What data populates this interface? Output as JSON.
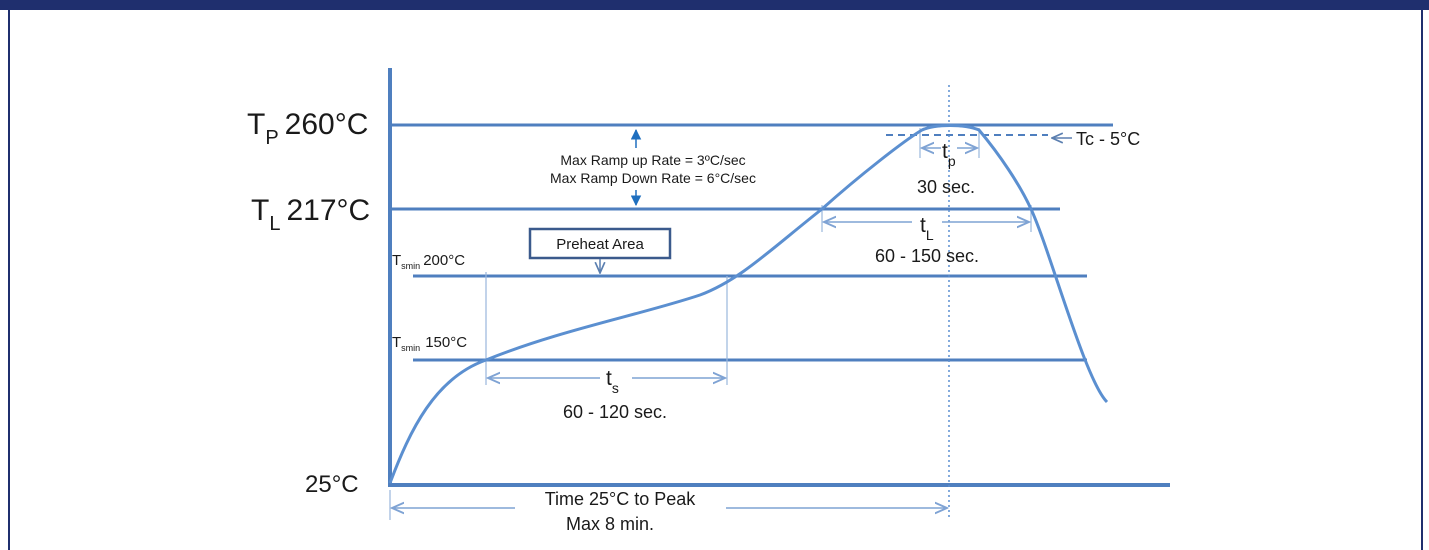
{
  "colors": {
    "header_bar": "#1f2f6e",
    "line": "#4f7fbf",
    "curve": "#5b8fd0",
    "dim": "#7fa3d4",
    "ramp_arrow": "#1f6fbf",
    "box_border": "#3b5a8c"
  },
  "levels": {
    "tp": {
      "symbol": "T",
      "sub": "P",
      "value": "260°C"
    },
    "tl": {
      "symbol": "T",
      "sub": "L",
      "value": "217°C"
    },
    "tsmax": {
      "symbol": "T",
      "sub": "smin",
      "value": "200°C"
    },
    "tsmin": {
      "symbol": "T",
      "sub": "smin",
      "value": "150°C"
    },
    "ambient": {
      "value": "25°C"
    }
  },
  "annotations": {
    "ramp_up": "Max Ramp up Rate = 3ºC/sec",
    "ramp_down": "Max Ramp Down Rate = 6°C/sec",
    "preheat": "Preheat Area",
    "tc": "Tc - 5°C",
    "tp_symbol": "t",
    "tp_sub": "p",
    "tp_time": "30 sec.",
    "tl_symbol": "t",
    "tl_sub": "L",
    "tl_time": "60 - 150 sec.",
    "ts_symbol": "t",
    "ts_sub": "s",
    "ts_time": "60 - 120 sec.",
    "peak_time_line1": "Time 25°C to Peak",
    "peak_time_line2": "Max 8 min."
  }
}
